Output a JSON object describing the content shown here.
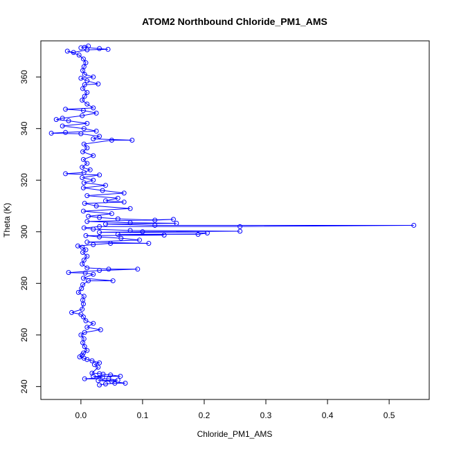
{
  "chart_data": {
    "type": "scatter",
    "title": "ATOM2 Northbound Chloride_PM1_AMS",
    "xlabel": "Chloride_PM1_AMS",
    "ylabel": "Theta (K)",
    "xlim": [
      -0.065,
      0.565
    ],
    "ylim": [
      235,
      374
    ],
    "x_ticks": [
      0.0,
      0.1,
      0.2,
      0.3,
      0.4,
      0.5
    ],
    "x_tick_labels": [
      "0.0",
      "0.1",
      "0.2",
      "0.3",
      "0.4",
      "0.5"
    ],
    "y_ticks": [
      240,
      260,
      280,
      300,
      320,
      340,
      360
    ],
    "y_tick_labels": [
      "240",
      "260",
      "280",
      "300",
      "320",
      "340",
      "360"
    ],
    "grid": false,
    "legend": "none",
    "marker": "open-circle",
    "connected_by_line": true,
    "series_color": "#0000ff",
    "series": [
      {
        "points": [
          [
            0.03,
            240.6
          ],
          [
            0.04,
            241.0
          ],
          [
            0.055,
            241.3
          ],
          [
            0.072,
            241.3
          ],
          [
            0.05,
            242.0
          ],
          [
            0.028,
            242.3
          ],
          [
            0.06,
            242.5
          ],
          [
            0.045,
            243.0
          ],
          [
            0.006,
            243.0
          ],
          [
            0.035,
            243.5
          ],
          [
            0.02,
            244.0
          ],
          [
            0.064,
            244.0
          ],
          [
            0.048,
            244.5
          ],
          [
            0.036,
            244.8
          ],
          [
            0.03,
            245.0
          ],
          [
            0.018,
            245.2
          ],
          [
            0.028,
            247.5
          ],
          [
            0.022,
            248.5
          ],
          [
            0.03,
            249.2
          ],
          [
            0.018,
            250.0
          ],
          [
            0.01,
            250.5
          ],
          [
            0.005,
            251.0
          ],
          [
            -0.002,
            251.5
          ],
          [
            0.002,
            252.2
          ],
          [
            0.004,
            253.0
          ],
          [
            0.01,
            254.0
          ],
          [
            0.006,
            255.5
          ],
          [
            0.003,
            257.0
          ],
          [
            0.005,
            258.5
          ],
          [
            0.0,
            260.0
          ],
          [
            0.006,
            261.0
          ],
          [
            0.032,
            262.0
          ],
          [
            0.01,
            263.0
          ],
          [
            0.02,
            264.5
          ],
          [
            0.008,
            265.5
          ],
          [
            0.004,
            267.0
          ],
          [
            0.0,
            268.0
          ],
          [
            -0.015,
            268.7
          ],
          [
            0.002,
            270.0
          ],
          [
            0.004,
            272.0
          ],
          [
            0.003,
            273.5
          ],
          [
            0.005,
            275.0
          ],
          [
            -0.004,
            276.5
          ],
          [
            0.001,
            278.0
          ],
          [
            0.003,
            279.5
          ],
          [
            0.012,
            281.0
          ],
          [
            0.052,
            281.0
          ],
          [
            0.004,
            282.0
          ],
          [
            0.02,
            283.5
          ],
          [
            0.007,
            284.0
          ],
          [
            -0.02,
            284.2
          ],
          [
            0.03,
            285.0
          ],
          [
            0.092,
            285.5
          ],
          [
            0.045,
            285.5
          ],
          [
            0.01,
            286.0
          ],
          [
            0.002,
            287.5
          ],
          [
            0.005,
            289.0
          ],
          [
            0.01,
            290.5
          ],
          [
            0.003,
            292.0
          ],
          [
            0.008,
            293.0
          ],
          [
            0.002,
            294.0
          ],
          [
            -0.005,
            294.5
          ],
          [
            0.02,
            295.0
          ],
          [
            0.048,
            295.5
          ],
          [
            0.11,
            295.5
          ],
          [
            0.01,
            296.0
          ],
          [
            0.095,
            296.8
          ],
          [
            0.065,
            297.5
          ],
          [
            0.03,
            298.0
          ],
          [
            0.008,
            298.5
          ],
          [
            0.135,
            298.7
          ],
          [
            0.06,
            299.0
          ],
          [
            0.19,
            299.0
          ],
          [
            0.205,
            299.5
          ],
          [
            0.03,
            299.8
          ],
          [
            0.1,
            300.0
          ],
          [
            0.258,
            300.2
          ],
          [
            0.08,
            300.5
          ],
          [
            0.02,
            301.0
          ],
          [
            0.005,
            301.5
          ],
          [
            0.03,
            302.0
          ],
          [
            0.258,
            302.0
          ],
          [
            0.54,
            302.5
          ],
          [
            0.12,
            302.5
          ],
          [
            0.04,
            303.0
          ],
          [
            0.155,
            303.3
          ],
          [
            0.08,
            303.5
          ],
          [
            0.01,
            304.0
          ],
          [
            0.15,
            304.8
          ],
          [
            0.12,
            304.5
          ],
          [
            0.06,
            305.0
          ],
          [
            0.03,
            305.5
          ],
          [
            0.012,
            306.0
          ],
          [
            0.05,
            307.0
          ],
          [
            0.004,
            308.0
          ],
          [
            0.08,
            309.0
          ],
          [
            0.025,
            310.0
          ],
          [
            0.006,
            311.0
          ],
          [
            0.07,
            311.5
          ],
          [
            0.04,
            312.0
          ],
          [
            0.06,
            313.0
          ],
          [
            0.01,
            314.0
          ],
          [
            0.07,
            315.0
          ],
          [
            0.035,
            316.0
          ],
          [
            0.004,
            317.0
          ],
          [
            0.04,
            318.0
          ],
          [
            0.005,
            319.0
          ],
          [
            0.02,
            320.0
          ],
          [
            0.002,
            321.0
          ],
          [
            0.03,
            322.0
          ],
          [
            -0.025,
            322.5
          ],
          [
            0.005,
            323.0
          ],
          [
            0.015,
            324.0
          ],
          [
            0.002,
            325.0
          ],
          [
            0.01,
            326.5
          ],
          [
            0.004,
            328.0
          ],
          [
            0.02,
            329.5
          ],
          [
            0.003,
            331.0
          ],
          [
            0.01,
            332.5
          ],
          [
            0.005,
            334.0
          ],
          [
            0.05,
            335.5
          ],
          [
            0.083,
            335.5
          ],
          [
            0.02,
            336.0
          ],
          [
            0.03,
            337.0
          ],
          [
            0.0,
            338.0
          ],
          [
            -0.048,
            338.2
          ],
          [
            -0.025,
            338.5
          ],
          [
            0.025,
            339.0
          ],
          [
            0.005,
            340.0
          ],
          [
            -0.03,
            341.0
          ],
          [
            0.01,
            342.0
          ],
          [
            -0.02,
            343.0
          ],
          [
            -0.04,
            343.5
          ],
          [
            -0.03,
            344.0
          ],
          [
            0.002,
            345.0
          ],
          [
            0.025,
            346.0
          ],
          [
            0.004,
            347.0
          ],
          [
            -0.025,
            347.5
          ],
          [
            0.02,
            348.0
          ],
          [
            0.01,
            349.5
          ],
          [
            0.002,
            351.0
          ],
          [
            0.006,
            352.5
          ],
          [
            0.01,
            354.0
          ],
          [
            0.003,
            355.5
          ],
          [
            0.006,
            357.0
          ],
          [
            0.028,
            357.3
          ],
          [
            0.01,
            358.5
          ],
          [
            0.0,
            359.5
          ],
          [
            0.02,
            360.0
          ],
          [
            0.006,
            361.0
          ],
          [
            0.003,
            362.5
          ],
          [
            0.005,
            364.0
          ],
          [
            0.008,
            365.5
          ],
          [
            0.004,
            367.0
          ],
          [
            -0.003,
            368.5
          ],
          [
            -0.022,
            370.0
          ],
          [
            -0.012,
            369.5
          ],
          [
            0.01,
            370.5
          ],
          [
            0.044,
            370.7
          ],
          [
            0.03,
            371.0
          ],
          [
            0.006,
            371.5
          ],
          [
            0.012,
            372.0
          ],
          [
            0.0,
            371.3
          ]
        ]
      }
    ]
  }
}
